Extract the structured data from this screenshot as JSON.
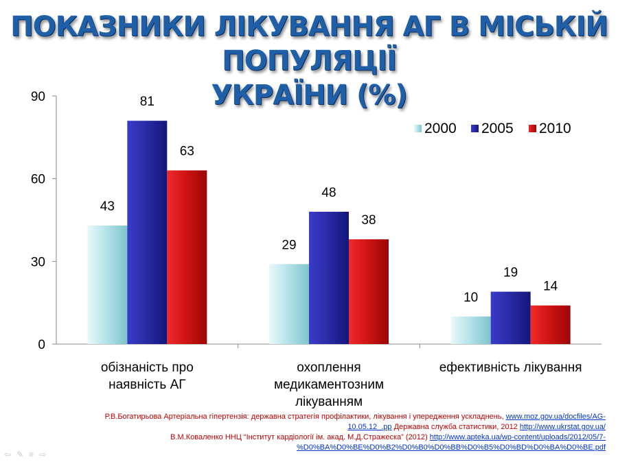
{
  "title": {
    "line1": "ПОКАЗНИКИ ЛІКУВАННЯ АГ В МІСЬКІЙ  ПОПУЛЯЦІЇ",
    "line2": "УКРАЇНИ (%)"
  },
  "chart_data": {
    "type": "bar",
    "categories": [
      [
        "обізнаність про",
        "наявність АГ"
      ],
      [
        "охоплення",
        "медикаментозним",
        "лікуванням"
      ],
      [
        "ефективність лікування"
      ]
    ],
    "series": [
      {
        "name": "2000",
        "values": [
          43,
          29,
          10
        ],
        "color": "#a9dce3"
      },
      {
        "name": "2005",
        "values": [
          81,
          48,
          19
        ],
        "color": "#2a2ca8"
      },
      {
        "name": "2010",
        "values": [
          63,
          38,
          14
        ],
        "color": "#d11414"
      }
    ],
    "yticks": [
      0,
      30,
      60,
      90
    ],
    "ylim": [
      0,
      90
    ],
    "legend_position": "top-right",
    "grid": false
  },
  "references": {
    "line1": {
      "text": "Р.В.Богатирьова Артеріальна гіпертензія: державна стратегія профілактики, лікування і упередження ускладнень, ",
      "link": "www.moz.gov.ua/docfiles/AG-"
    },
    "line2": {
      "link": "10.05.12_.pp",
      "text": " Державна служба статистики, 2012 ",
      "link2": "http://www.ukrstat.gov.ua/"
    },
    "line3": {
      "text": "В.М.Коваленко ННЦ “Інститут кардіології ім. акад. М.Д.Стражеска” (2012) ",
      "link": "http://www.apteka.ua/wp-content/uploads/2012/05/7-"
    },
    "line4": {
      "link": "%D0%BA%D0%BE%D0%B2%D0%B0%D0%BB%D0%B5%D0%BD%D0%BA%D0%BE.pdf"
    }
  },
  "nav": {
    "prev": "⇦",
    "pen": "✎",
    "menu": "≡",
    "next": "⇨"
  }
}
